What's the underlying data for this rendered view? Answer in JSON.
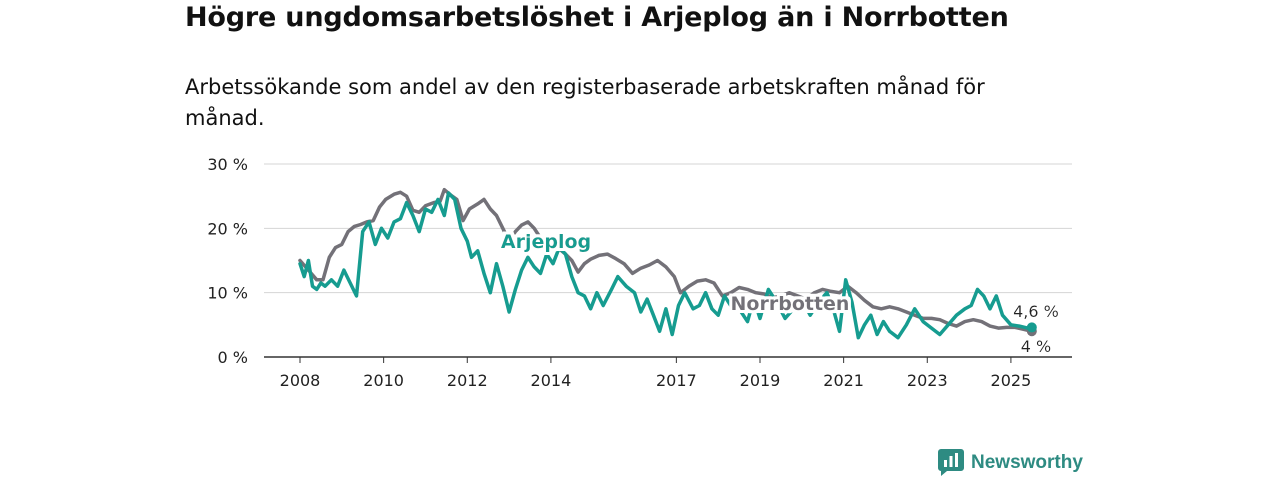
{
  "header": {
    "title": "Högre ungdomsarbetslöshet i Arjeplog än i Norrbotten",
    "subtitle": "Arbetssökande som andel av den registerbaserade arbetskraften månad för månad."
  },
  "brand": {
    "name": "Newsworthy",
    "icon": "newsworthy-logo-icon",
    "color": "#2e8b82"
  },
  "chart_data": {
    "type": "line",
    "x_unit": "year (decimal)",
    "xlim": [
      2008,
      2025.6
    ],
    "ylim": [
      0,
      30
    ],
    "yticks": [
      {
        "value": 0,
        "label": "0 %"
      },
      {
        "value": 10,
        "label": "10 %"
      },
      {
        "value": 20,
        "label": "20 %"
      },
      {
        "value": 30,
        "label": "30 %"
      }
    ],
    "xticks": [
      {
        "value": 2008,
        "label": "2008"
      },
      {
        "value": 2010,
        "label": "2010"
      },
      {
        "value": 2012,
        "label": "2012"
      },
      {
        "value": 2014,
        "label": "2014"
      },
      {
        "value": 2017,
        "label": "2017"
      },
      {
        "value": 2019,
        "label": "2019"
      },
      {
        "value": 2021,
        "label": "2021"
      },
      {
        "value": 2023,
        "label": "2023"
      },
      {
        "value": 2025,
        "label": "2025"
      }
    ],
    "grid": true,
    "series": [
      {
        "name": "Norrbotten",
        "color": "#737178",
        "end_label": "4 %",
        "points": [
          [
            2008.0,
            15.0
          ],
          [
            2008.2,
            13.5
          ],
          [
            2008.4,
            12.0
          ],
          [
            2008.55,
            12.0
          ],
          [
            2008.7,
            15.5
          ],
          [
            2008.85,
            17.0
          ],
          [
            2009.0,
            17.5
          ],
          [
            2009.15,
            19.5
          ],
          [
            2009.3,
            20.3
          ],
          [
            2009.45,
            20.6
          ],
          [
            2009.6,
            21.0
          ],
          [
            2009.75,
            21.2
          ],
          [
            2009.9,
            23.3
          ],
          [
            2010.05,
            24.5
          ],
          [
            2010.25,
            25.3
          ],
          [
            2010.4,
            25.6
          ],
          [
            2010.55,
            25.0
          ],
          [
            2010.7,
            22.8
          ],
          [
            2010.85,
            22.5
          ],
          [
            2011.0,
            23.5
          ],
          [
            2011.2,
            24.0
          ],
          [
            2011.35,
            24.2
          ],
          [
            2011.45,
            26.0
          ],
          [
            2011.6,
            25.2
          ],
          [
            2011.75,
            24.5
          ],
          [
            2011.9,
            21.2
          ],
          [
            2012.05,
            23.0
          ],
          [
            2012.25,
            23.8
          ],
          [
            2012.4,
            24.5
          ],
          [
            2012.55,
            23.0
          ],
          [
            2012.7,
            22.0
          ],
          [
            2012.85,
            20.0
          ],
          [
            2013.0,
            18.0
          ],
          [
            2013.15,
            19.5
          ],
          [
            2013.3,
            20.5
          ],
          [
            2013.45,
            21.0
          ],
          [
            2013.6,
            20.0
          ],
          [
            2013.75,
            18.5
          ],
          [
            2013.9,
            16.5
          ],
          [
            2014.05,
            17.5
          ],
          [
            2014.2,
            16.8
          ],
          [
            2014.35,
            16.0
          ],
          [
            2014.5,
            15.0
          ],
          [
            2014.65,
            13.2
          ],
          [
            2014.8,
            14.5
          ],
          [
            2014.95,
            15.2
          ],
          [
            2015.15,
            15.8
          ],
          [
            2015.35,
            16.0
          ],
          [
            2015.55,
            15.3
          ],
          [
            2015.75,
            14.5
          ],
          [
            2015.95,
            13.0
          ],
          [
            2016.15,
            13.8
          ],
          [
            2016.35,
            14.3
          ],
          [
            2016.55,
            15.0
          ],
          [
            2016.75,
            14.0
          ],
          [
            2016.95,
            12.5
          ],
          [
            2017.1,
            10.0
          ],
          [
            2017.3,
            11.0
          ],
          [
            2017.5,
            11.8
          ],
          [
            2017.7,
            12.0
          ],
          [
            2017.9,
            11.5
          ],
          [
            2018.1,
            9.5
          ],
          [
            2018.3,
            10.0
          ],
          [
            2018.5,
            10.8
          ],
          [
            2018.7,
            10.5
          ],
          [
            2018.9,
            10.0
          ],
          [
            2019.1,
            9.8
          ],
          [
            2019.3,
            9.2
          ],
          [
            2019.5,
            9.5
          ],
          [
            2019.7,
            10.0
          ],
          [
            2019.9,
            9.5
          ],
          [
            2020.1,
            9.0
          ],
          [
            2020.3,
            10.0
          ],
          [
            2020.5,
            10.5
          ],
          [
            2020.7,
            10.2
          ],
          [
            2020.9,
            10.0
          ],
          [
            2021.1,
            11.0
          ],
          [
            2021.3,
            10.0
          ],
          [
            2021.5,
            8.8
          ],
          [
            2021.7,
            7.8
          ],
          [
            2021.9,
            7.5
          ],
          [
            2022.1,
            7.8
          ],
          [
            2022.3,
            7.5
          ],
          [
            2022.5,
            7.0
          ],
          [
            2022.7,
            6.5
          ],
          [
            2022.9,
            6.0
          ],
          [
            2023.1,
            6.0
          ],
          [
            2023.3,
            5.8
          ],
          [
            2023.5,
            5.2
          ],
          [
            2023.7,
            4.8
          ],
          [
            2023.9,
            5.5
          ],
          [
            2024.1,
            5.8
          ],
          [
            2024.3,
            5.5
          ],
          [
            2024.5,
            4.8
          ],
          [
            2024.7,
            4.5
          ],
          [
            2024.9,
            4.6
          ],
          [
            2025.1,
            4.6
          ],
          [
            2025.3,
            4.3
          ],
          [
            2025.5,
            4.0
          ]
        ]
      },
      {
        "name": "Arjeplog",
        "color": "#169c90",
        "end_label": "4,6 %",
        "points": [
          [
            2008.0,
            14.5
          ],
          [
            2008.1,
            12.5
          ],
          [
            2008.2,
            15.0
          ],
          [
            2008.3,
            11.0
          ],
          [
            2008.4,
            10.5
          ],
          [
            2008.5,
            11.5
          ],
          [
            2008.6,
            11.0
          ],
          [
            2008.75,
            12.0
          ],
          [
            2008.9,
            11.0
          ],
          [
            2009.05,
            13.5
          ],
          [
            2009.2,
            11.5
          ],
          [
            2009.35,
            9.5
          ],
          [
            2009.5,
            19.5
          ],
          [
            2009.65,
            21.0
          ],
          [
            2009.8,
            17.5
          ],
          [
            2009.95,
            20.0
          ],
          [
            2010.1,
            18.5
          ],
          [
            2010.25,
            21.0
          ],
          [
            2010.4,
            21.5
          ],
          [
            2010.55,
            24.0
          ],
          [
            2010.7,
            22.0
          ],
          [
            2010.85,
            19.5
          ],
          [
            2011.0,
            23.0
          ],
          [
            2011.15,
            22.5
          ],
          [
            2011.3,
            24.5
          ],
          [
            2011.45,
            22.0
          ],
          [
            2011.55,
            25.5
          ],
          [
            2011.7,
            24.5
          ],
          [
            2011.85,
            20.0
          ],
          [
            2012.0,
            18.0
          ],
          [
            2012.1,
            15.5
          ],
          [
            2012.25,
            16.5
          ],
          [
            2012.4,
            13.0
          ],
          [
            2012.55,
            10.0
          ],
          [
            2012.7,
            14.5
          ],
          [
            2012.85,
            11.0
          ],
          [
            2013.0,
            7.0
          ],
          [
            2013.15,
            10.5
          ],
          [
            2013.3,
            13.5
          ],
          [
            2013.45,
            15.5
          ],
          [
            2013.6,
            14.0
          ],
          [
            2013.75,
            13.0
          ],
          [
            2013.9,
            16.0
          ],
          [
            2014.05,
            14.5
          ],
          [
            2014.2,
            17.0
          ],
          [
            2014.35,
            16.0
          ],
          [
            2014.5,
            12.5
          ],
          [
            2014.65,
            10.0
          ],
          [
            2014.8,
            9.5
          ],
          [
            2014.95,
            7.5
          ],
          [
            2015.1,
            10.0
          ],
          [
            2015.25,
            8.0
          ],
          [
            2015.45,
            10.5
          ],
          [
            2015.6,
            12.5
          ],
          [
            2015.8,
            11.0
          ],
          [
            2016.0,
            10.0
          ],
          [
            2016.15,
            7.0
          ],
          [
            2016.3,
            9.0
          ],
          [
            2016.45,
            6.5
          ],
          [
            2016.6,
            4.0
          ],
          [
            2016.75,
            7.5
          ],
          [
            2016.9,
            3.5
          ],
          [
            2017.05,
            8.0
          ],
          [
            2017.2,
            10.0
          ],
          [
            2017.4,
            7.5
          ],
          [
            2017.55,
            8.0
          ],
          [
            2017.7,
            10.0
          ],
          [
            2017.85,
            7.5
          ],
          [
            2018.0,
            6.5
          ],
          [
            2018.15,
            9.5
          ],
          [
            2018.3,
            8.0
          ],
          [
            2018.5,
            7.5
          ],
          [
            2018.7,
            5.5
          ],
          [
            2018.85,
            9.0
          ],
          [
            2019.0,
            6.0
          ],
          [
            2019.2,
            10.5
          ],
          [
            2019.4,
            8.5
          ],
          [
            2019.6,
            6.0
          ],
          [
            2019.8,
            7.5
          ],
          [
            2020.0,
            9.0
          ],
          [
            2020.2,
            6.5
          ],
          [
            2020.4,
            8.5
          ],
          [
            2020.6,
            10.0
          ],
          [
            2020.75,
            7.5
          ],
          [
            2020.9,
            4.0
          ],
          [
            2021.05,
            12.0
          ],
          [
            2021.2,
            8.5
          ],
          [
            2021.35,
            3.0
          ],
          [
            2021.5,
            5.0
          ],
          [
            2021.65,
            6.5
          ],
          [
            2021.8,
            3.5
          ],
          [
            2021.95,
            5.5
          ],
          [
            2022.1,
            4.0
          ],
          [
            2022.3,
            3.0
          ],
          [
            2022.5,
            5.0
          ],
          [
            2022.7,
            7.5
          ],
          [
            2022.9,
            5.5
          ],
          [
            2023.1,
            4.5
          ],
          [
            2023.3,
            3.5
          ],
          [
            2023.5,
            5.0
          ],
          [
            2023.7,
            6.5
          ],
          [
            2023.9,
            7.5
          ],
          [
            2024.05,
            8.0
          ],
          [
            2024.2,
            10.5
          ],
          [
            2024.35,
            9.5
          ],
          [
            2024.5,
            7.5
          ],
          [
            2024.65,
            9.5
          ],
          [
            2024.8,
            6.5
          ],
          [
            2025.0,
            5.0
          ],
          [
            2025.2,
            4.8
          ],
          [
            2025.4,
            4.5
          ],
          [
            2025.5,
            4.6
          ]
        ]
      }
    ]
  }
}
